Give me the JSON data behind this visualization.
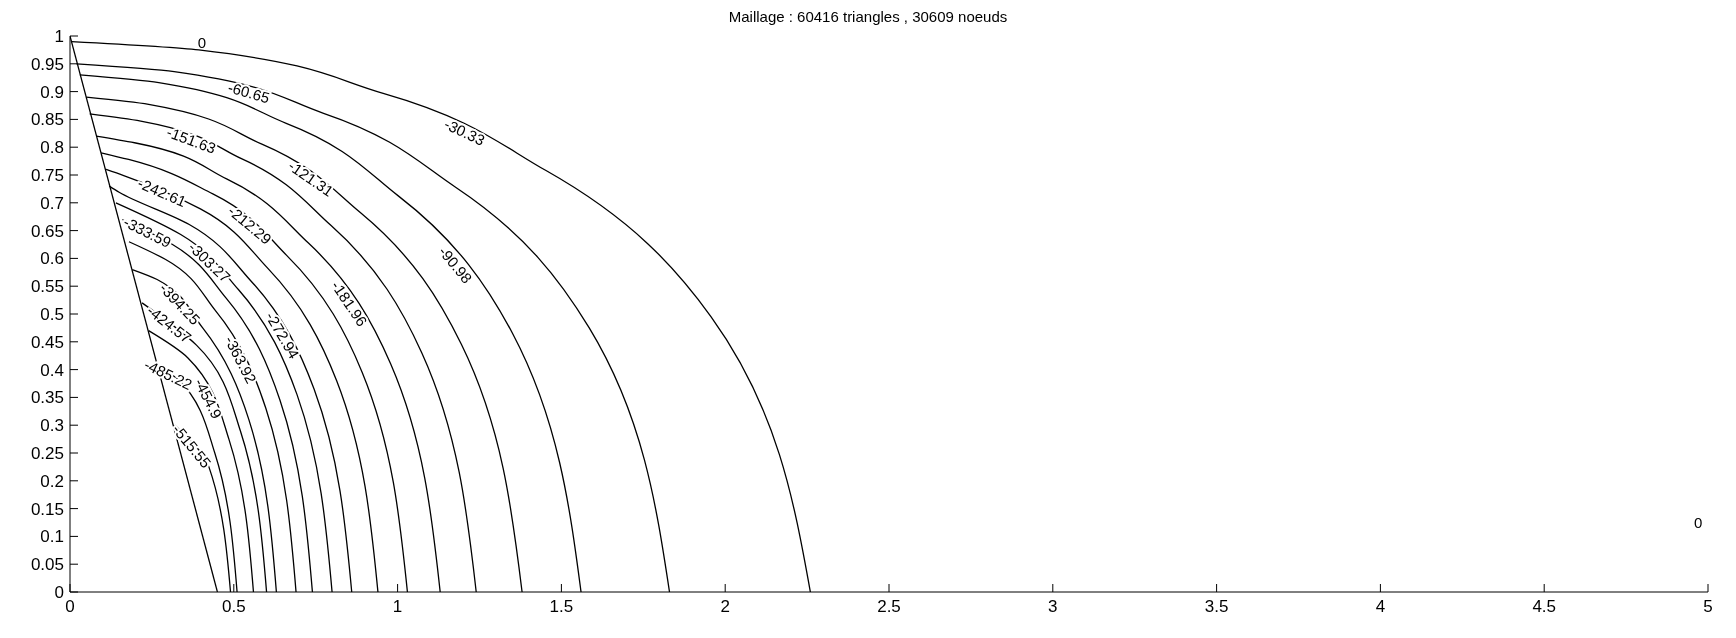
{
  "chart_data": {
    "type": "line",
    "title": "Maillage : 60416 triangles , 30609 noeuds",
    "xlim": [
      0,
      5
    ],
    "xticks": [
      0,
      0.5,
      1,
      1.5,
      2,
      2.5,
      3,
      3.5,
      4,
      4.5,
      5
    ],
    "ylim": [
      0,
      1
    ],
    "yticks": [
      0,
      0.05,
      0.1,
      0.15,
      0.2,
      0.25,
      0.3,
      0.35,
      0.4,
      0.45,
      0.5,
      0.55,
      0.6,
      0.65,
      0.7,
      0.75,
      0.8,
      0.85,
      0.9,
      0.95,
      1
    ],
    "grid": false,
    "marker": "none",
    "line_style": "solid",
    "annotations": [
      "0",
      "0"
    ],
    "series": [
      {
        "color": "#000000",
        "x": [
          0,
          0.45
        ],
        "values": [
          1,
          0
        ]
      },
      {
        "name": "-30.33",
        "color": "#000000",
        "x": [
          2.26,
          1.957,
          1.453,
          0.956,
          0.393,
          0.005
        ],
        "values": [
          0,
          0.495,
          0.758,
          0.897,
          0.975,
          0.99
        ]
      },
      {
        "name": "-60.65",
        "color": "#000000",
        "x": [
          1.83,
          1.585,
          1.177,
          0.774,
          0.318,
          0.02
        ],
        "values": [
          0,
          0.475,
          0.728,
          0.861,
          0.936,
          0.95
        ]
      },
      {
        "name": "-90.98",
        "color": "#000000",
        "x": [
          1.56,
          1.351,
          1.003,
          0.66,
          0.271,
          0.03
        ],
        "values": [
          0,
          0.465,
          0.712,
          0.843,
          0.916,
          0.93
        ]
      },
      {
        "name": "-121.31",
        "color": "#000000",
        "x": [
          1.38,
          1.195,
          0.887,
          0.584,
          0.24,
          0.05
        ],
        "values": [
          0,
          0.445,
          0.682,
          0.806,
          0.877,
          0.89
        ]
      },
      {
        "name": "-151.63",
        "color": "#000000",
        "x": [
          1.24,
          1.074,
          0.797,
          0.525,
          0.216,
          0.06
        ],
        "values": [
          0,
          0.43,
          0.659,
          0.779,
          0.847,
          0.86
        ]
      },
      {
        "name": "-181.96",
        "color": "#000000",
        "x": [
          1.13,
          0.979,
          0.727,
          0.478,
          0.197,
          0.08
        ],
        "values": [
          0,
          0.41,
          0.628,
          0.743,
          0.808,
          0.82
        ]
      },
      {
        "name": "-212.29",
        "color": "#000000",
        "x": [
          1.03,
          0.892,
          0.662,
          0.436,
          0.179,
          0.095
        ],
        "values": [
          0,
          0.395,
          0.605,
          0.716,
          0.778,
          0.79
        ]
      },
      {
        "name": "-242.61",
        "color": "#000000",
        "x": [
          0.94,
          0.814,
          0.604,
          0.398,
          0.164,
          0.11
        ],
        "values": [
          0,
          0.38,
          0.582,
          0.689,
          0.749,
          0.76
        ]
      },
      {
        "name": "-272.94",
        "color": "#000000",
        "x": [
          0.86,
          0.745,
          0.553,
          0.364,
          0.15,
          0.12
        ],
        "values": [
          0,
          0.365,
          0.559,
          0.661,
          0.719,
          0.73
        ]
      },
      {
        "name": "-303.27",
        "color": "#000000",
        "x": [
          0.8,
          0.693,
          0.514,
          0.338,
          0.14
        ],
        "values": [
          0,
          0.355,
          0.544,
          0.643,
          0.7
        ]
      },
      {
        "name": "-333.59",
        "color": "#000000",
        "x": [
          0.74,
          0.641,
          0.476,
          0.313,
          0.16
        ],
        "values": [
          0,
          0.345,
          0.529,
          0.625,
          0.67
        ]
      },
      {
        "name": "-363.92",
        "color": "#000000",
        "x": [
          0.69,
          0.598,
          0.444,
          0.292,
          0.18
        ],
        "values": [
          0,
          0.33,
          0.506,
          0.598,
          0.63
        ]
      },
      {
        "name": "-394.25",
        "color": "#000000",
        "x": [
          0.63,
          0.546,
          0.405,
          0.266,
          0.19
        ],
        "values": [
          0,
          0.31,
          0.475,
          0.562,
          0.58
        ]
      },
      {
        "name": "-424.57",
        "color": "#000000",
        "x": [
          0.6,
          0.52,
          0.386,
          0.22
        ],
        "values": [
          0,
          0.29,
          0.444,
          0.52
        ]
      },
      {
        "name": "-454.9",
        "color": "#000000",
        "x": [
          0.56,
          0.485,
          0.36,
          0.24
        ],
        "values": [
          0,
          0.275,
          0.421,
          0.47
        ]
      },
      {
        "name": "-485.22",
        "color": "#000000",
        "x": [
          0.51,
          0.442,
          0.33,
          0.27
        ],
        "values": [
          0,
          0.25,
          0.383,
          0.4
        ]
      },
      {
        "name": "-515.55",
        "color": "#000000",
        "x": [
          0.49,
          0.424,
          0.32
        ],
        "values": [
          0,
          0.225,
          0.3
        ]
      }
    ]
  }
}
